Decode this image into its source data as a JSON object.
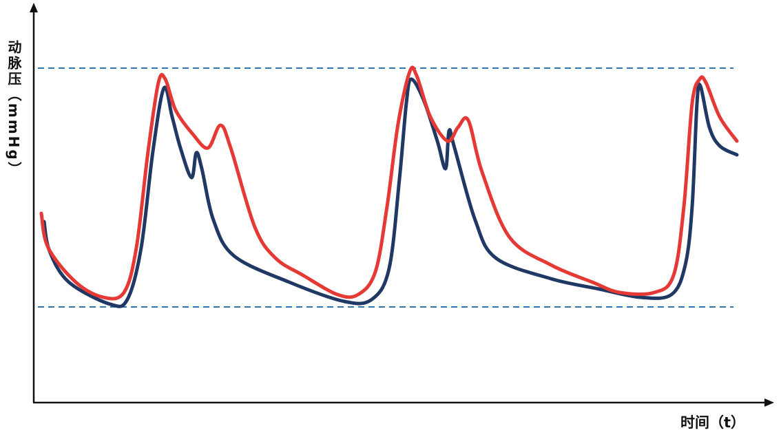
{
  "axes": {
    "y_label": "动脉压（mmHg）",
    "x_label": "时间（t）"
  }
}
